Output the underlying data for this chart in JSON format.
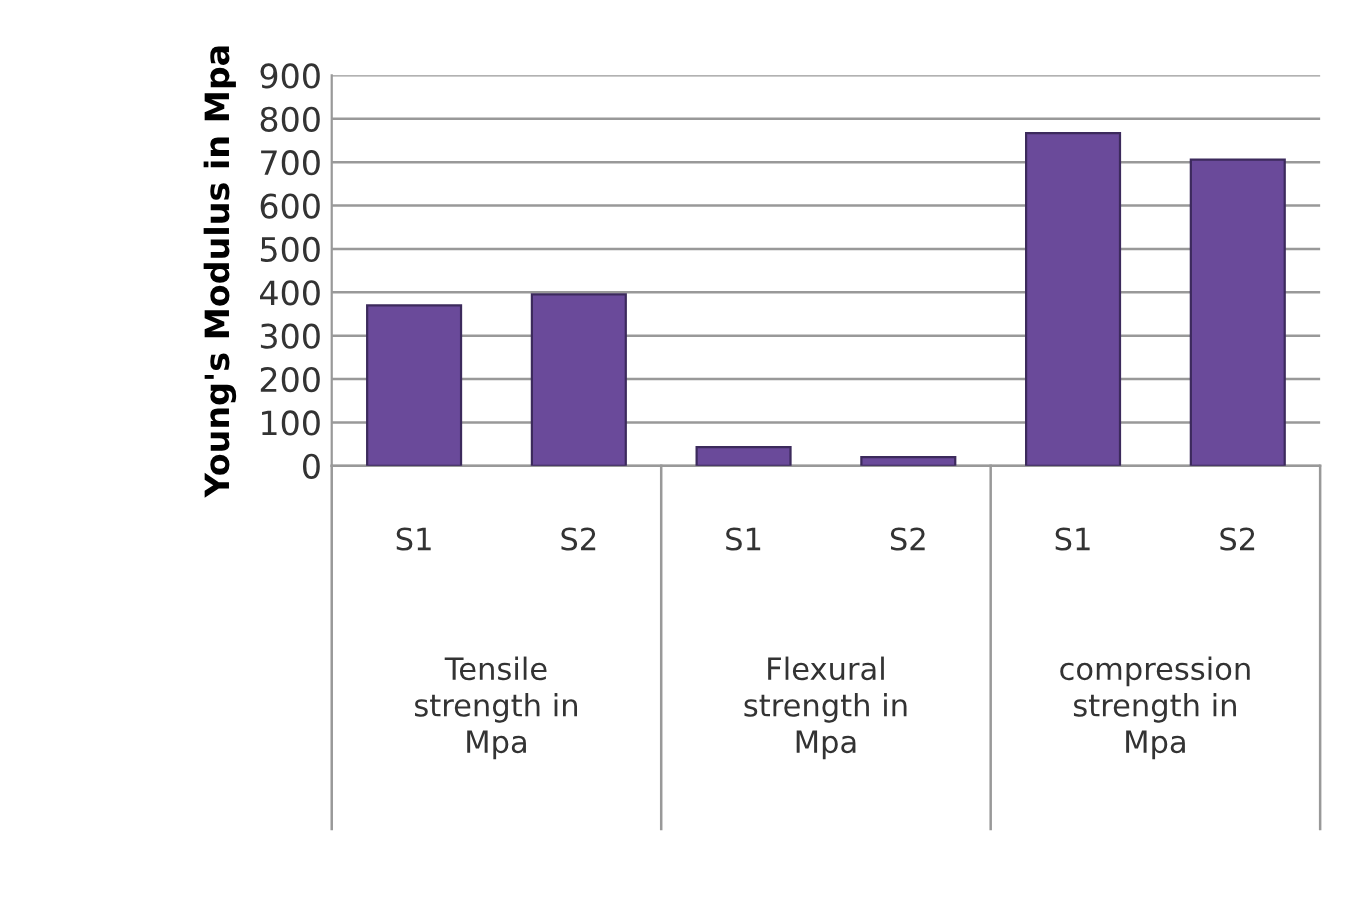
{
  "chart_data": {
    "type": "bar",
    "ylabel": "Young's Modulus in Mpa",
    "categories": [
      "S1",
      "S2",
      "S1",
      "S2",
      "S1",
      "S2"
    ],
    "values": [
      370,
      395,
      43,
      20,
      767,
      706
    ],
    "color": "#6a4a9a",
    "ylim": [
      0,
      900
    ],
    "yticks": [
      0,
      100,
      200,
      300,
      400,
      500,
      600,
      700,
      800,
      900
    ],
    "grid": "y",
    "annotations": [
      "Tensile\nstrength in\nMpa",
      "Flexural\nstrength in\nMpa",
      "compression\nstrength in\nMpa"
    ]
  }
}
